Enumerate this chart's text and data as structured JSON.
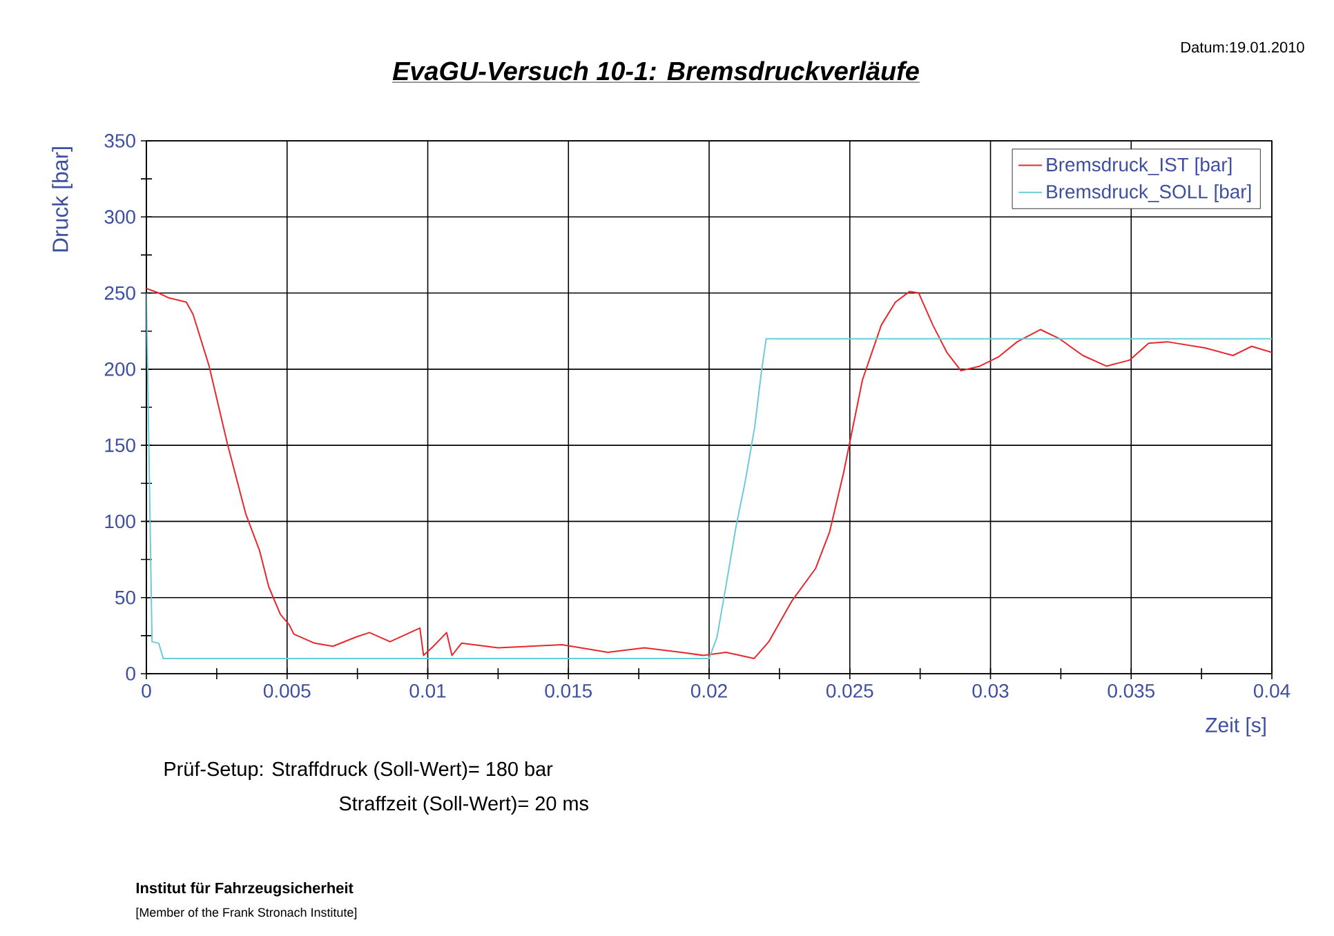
{
  "chart_data": {
    "type": "line",
    "title": "EvaGU-Versuch  10-1: Bremsdruckverläufe",
    "xlabel": "Zeit [s]",
    "ylabel": "Druck [bar]",
    "annotations": [
      "Datum:19.01.2010",
      "Prüf-Setup:  Straffdruck (Soll-Wert)= 180 bar",
      "Straffzeit (Soll-Wert)= 20 ms",
      "Institut für Fahrzeugsicherheit",
      "[Member of the Frank Stronach Institute]"
    ],
    "xlim": [
      0,
      0.04
    ],
    "ylim": [
      0,
      350
    ],
    "xticks": [
      0,
      {
        "value": 0.0025,
        "label": null
      },
      0.005,
      {
        "value": 0.0075,
        "label": null
      },
      0.01,
      {
        "value": 0.0125,
        "label": null
      },
      0.015,
      {
        "value": 0.0175,
        "label": null
      },
      0.02,
      {
        "value": 0.0225,
        "label": null
      },
      0.025,
      {
        "value": 0.0275,
        "label": null
      },
      0.03,
      {
        "value": 0.0325,
        "label": null
      },
      0.035,
      {
        "value": 0.0375,
        "label": null
      },
      0.04
    ],
    "yticks": [
      0,
      {
        "value": 25,
        "label": null
      },
      50,
      {
        "value": 75,
        "label": null
      },
      100,
      {
        "value": 125,
        "label": null
      },
      150,
      {
        "value": 175,
        "label": null
      },
      200,
      {
        "value": 225,
        "label": null
      },
      250,
      {
        "value": 275,
        "label": null
      },
      300,
      {
        "value": 325,
        "label": null
      },
      350
    ],
    "grid": true,
    "legend": "top right",
    "marker": "none",
    "line_style": "solid",
    "series": [
      {
        "name": "Bremsdruck_IST [bar]",
        "color": "#e8262c",
        "x": [
          0,
          0.00044,
          0.00077,
          0.00142,
          0.00166,
          0.00223,
          0.00288,
          0.00353,
          0.00402,
          0.00435,
          0.00476,
          0.00508,
          0.00524,
          0.00598,
          0.00663,
          0.00744,
          0.00793,
          0.00866,
          0.00972,
          0.00985,
          0.0102,
          0.01067,
          0.01086,
          0.0112,
          0.0125,
          0.01477,
          0.0164,
          0.0177,
          0.019,
          0.0198,
          0.0206,
          0.0216,
          0.02212,
          0.02295,
          0.02378,
          0.02428,
          0.02478,
          0.02545,
          0.02612,
          0.02662,
          0.02712,
          0.02745,
          0.02795,
          0.02845,
          0.02895,
          0.02962,
          0.03028,
          0.03095,
          0.03178,
          0.03245,
          0.03328,
          0.03412,
          0.03495,
          0.03562,
          0.03628,
          0.03762,
          0.03862,
          0.03928,
          0.04
        ],
        "values": [
          253,
          250,
          247,
          244,
          236,
          202,
          151,
          105,
          81,
          57,
          39,
          32,
          26,
          20,
          18,
          24,
          27,
          21,
          30,
          12,
          18,
          27,
          12,
          20,
          17,
          19,
          14,
          17,
          14,
          12,
          14,
          10,
          21,
          48,
          69,
          93,
          132,
          193,
          229,
          244,
          251,
          250,
          229,
          211,
          199,
          202,
          208,
          218,
          226,
          220,
          209,
          202,
          206,
          217,
          218,
          214,
          209,
          215,
          211
        ]
      },
      {
        "name": "Bremsdruck_SOLL [bar]",
        "color": "#6ccbd8",
        "x": [
          0,
          0.0002,
          0.00044,
          0.0006,
          0.02,
          0.02028,
          0.02062,
          0.02095,
          0.02128,
          0.02162,
          0.02187,
          0.02203,
          0.04
        ],
        "values": [
          250,
          21,
          20,
          10,
          10,
          24,
          60,
          96,
          126,
          162,
          200,
          220,
          220
        ]
      }
    ]
  }
}
